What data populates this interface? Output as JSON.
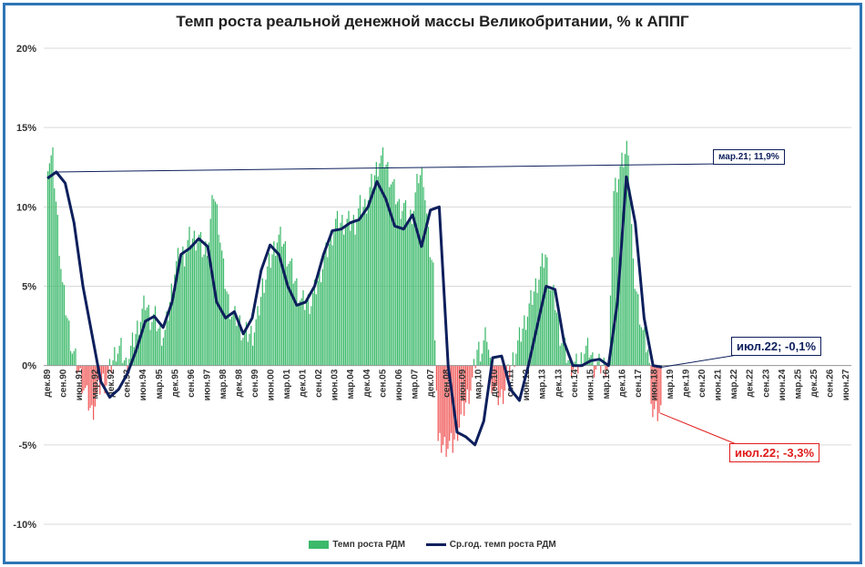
{
  "chart_data": {
    "type": "bar",
    "title": "Темп роста реальной денежной массы Великобритании, % к АППГ",
    "ylim": [
      -10,
      20
    ],
    "yticks": [
      "-10%",
      "-5%",
      "0%",
      "5%",
      "10%",
      "15%",
      "20%"
    ],
    "xticks": [
      "дек.89",
      "сен.90",
      "июн.91",
      "мар.92",
      "дек.92",
      "сен.93",
      "июн.94",
      "мар.95",
      "дек.95",
      "сен.96",
      "июн.97",
      "мар.98",
      "дек.98",
      "сен.99",
      "июн.00",
      "мар.01",
      "дек.01",
      "сен.02",
      "июн.03",
      "мар.04",
      "дек.04",
      "сен.05",
      "июн.06",
      "мар.07",
      "дек.07",
      "сен.08",
      "июн.09",
      "мар.10",
      "дек.10",
      "сен.11",
      "июн.12",
      "мар.13",
      "дек.13",
      "сен.14",
      "июн.15",
      "мар.16",
      "дек.16",
      "сен.17",
      "июн.18",
      "мар.19",
      "дек.19",
      "сен.20",
      "июн.21",
      "мар.22",
      "дек.22",
      "сен.23",
      "июн.24",
      "мар.25",
      "дек.25",
      "сен.26",
      "июн.27"
    ],
    "series": [
      {
        "name": "Темп роста РДМ",
        "type": "bar",
        "positive_color": "#3cb96a",
        "negative_color": "#f15a5a",
        "quarterly_values": [
          13,
          13,
          9,
          5,
          3,
          1,
          0,
          -1,
          -2,
          -3,
          -2,
          -1,
          -1,
          0,
          1,
          1,
          0,
          1,
          2,
          3,
          4,
          3,
          3,
          2,
          2,
          4,
          6,
          7,
          7,
          8,
          8,
          8,
          7,
          8,
          11,
          9,
          6,
          4,
          3,
          3,
          2,
          2,
          2,
          3,
          5,
          6,
          7,
          8,
          8,
          7,
          6,
          5,
          4,
          4,
          4,
          5,
          6,
          7,
          8,
          9,
          9,
          9,
          9,
          9,
          10,
          10,
          11,
          12,
          13,
          13,
          12,
          11,
          10,
          10,
          9,
          10,
          12,
          12,
          8,
          6,
          -5,
          -5,
          -5,
          -5,
          -4,
          -3,
          -2,
          -1,
          1,
          1,
          2,
          -1,
          -2,
          -2,
          -1,
          0,
          1,
          2,
          3,
          4,
          5,
          6,
          7,
          5,
          4,
          2,
          1,
          0,
          0,
          0,
          1,
          1,
          0,
          0,
          0,
          0,
          11,
          12,
          13,
          14,
          6,
          4,
          2,
          1,
          -3,
          -3
        ]
      },
      {
        "name": "Ср.год. темп роста РДМ",
        "type": "line",
        "color": "#0d1f5c",
        "points": [
          [
            0,
            11.8
          ],
          [
            1,
            12.2
          ],
          [
            2,
            11.5
          ],
          [
            3,
            9.0
          ],
          [
            4,
            5.0
          ],
          [
            5,
            2.0
          ],
          [
            6,
            -1.0
          ],
          [
            7,
            -2.0
          ],
          [
            8,
            -1.5
          ],
          [
            9,
            -0.5
          ],
          [
            10,
            1.0
          ],
          [
            11,
            2.8
          ],
          [
            12,
            3.1
          ],
          [
            13,
            2.4
          ],
          [
            14,
            4.0
          ],
          [
            15,
            7.0
          ],
          [
            16,
            7.4
          ],
          [
            17,
            8.0
          ],
          [
            18,
            7.5
          ],
          [
            19,
            4.0
          ],
          [
            20,
            3.0
          ],
          [
            21,
            3.4
          ],
          [
            22,
            2.0
          ],
          [
            23,
            3.0
          ],
          [
            24,
            6.0
          ],
          [
            25,
            7.6
          ],
          [
            26,
            7.0
          ],
          [
            27,
            5.0
          ],
          [
            28,
            3.8
          ],
          [
            29,
            4.0
          ],
          [
            30,
            5.0
          ],
          [
            31,
            7.0
          ],
          [
            32,
            8.5
          ],
          [
            33,
            8.6
          ],
          [
            34,
            9.0
          ],
          [
            35,
            9.2
          ],
          [
            36,
            10.0
          ],
          [
            37,
            11.6
          ],
          [
            38,
            10.5
          ],
          [
            39,
            8.8
          ],
          [
            40,
            8.6
          ],
          [
            41,
            9.5
          ],
          [
            42,
            7.5
          ],
          [
            43,
            9.8
          ],
          [
            44,
            10.0
          ],
          [
            45,
            0.0
          ],
          [
            46,
            -4.2
          ],
          [
            47,
            -4.5
          ],
          [
            48,
            -5.0
          ],
          [
            49,
            -3.5
          ],
          [
            50,
            0.5
          ],
          [
            51,
            0.6
          ],
          [
            52,
            -1.5
          ],
          [
            53,
            -2.2
          ],
          [
            54,
            0.0
          ],
          [
            55,
            2.5
          ],
          [
            56,
            5.0
          ],
          [
            57,
            4.8
          ],
          [
            58,
            1.5
          ],
          [
            59,
            0.0
          ],
          [
            60,
            0.0
          ],
          [
            61,
            0.3
          ],
          [
            62,
            0.4
          ],
          [
            63,
            0.0
          ],
          [
            64,
            4.0
          ],
          [
            65,
            11.9
          ],
          [
            66,
            9.0
          ],
          [
            67,
            3.0
          ],
          [
            68,
            0.0
          ],
          [
            69,
            -0.1
          ]
        ]
      }
    ],
    "annotations": [
      {
        "text": "мар.21; 11,9%",
        "series": "Ср.год. темп роста РДМ"
      },
      {
        "text": "июл.22; -0,1%",
        "series": "Ср.год. темп роста РДМ"
      },
      {
        "text": "июл.22; -3,3%",
        "series": "Темп роста РДМ"
      }
    ],
    "legend_position": "bottom"
  }
}
